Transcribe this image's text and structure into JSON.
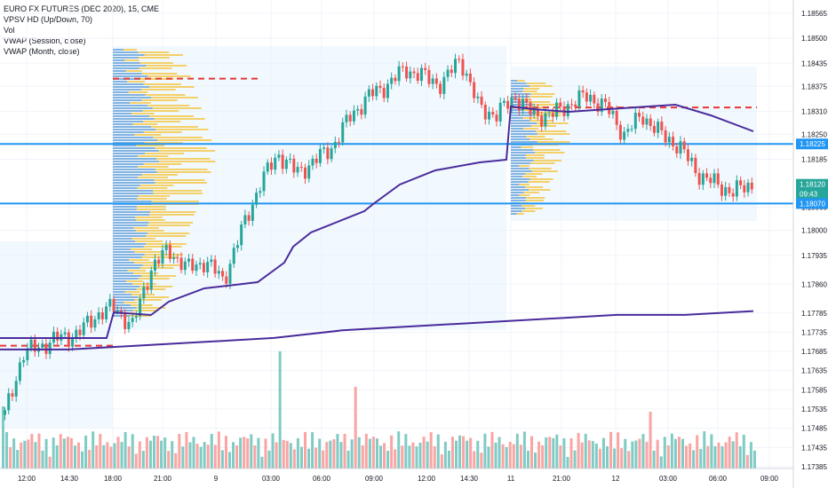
{
  "legend": {
    "title": "EURO FX FUTURES (DEC 2020), 15, CME",
    "line2": "VPSV HD (Up/Down, 70)",
    "line3": "Vol",
    "line4": "VWAP (Session, close)",
    "line5": "VWAP (Month, close)"
  },
  "chart_data": {
    "type": "candlestick",
    "title": "EURO FX FUTURES (DEC 2020), 15, CME",
    "price_axis_ticks": [
      "1.18565",
      "1.18500",
      "1.18435",
      "1.18375",
      "1.18310",
      "1.18250",
      "1.18185",
      "1.18060",
      "1.18000",
      "1.17935",
      "1.17860",
      "1.17785",
      "1.17735",
      "1.17685",
      "1.17635",
      "1.17585",
      "1.17535",
      "1.17485",
      "1.17435",
      "1.17385"
    ],
    "time_axis_ticks": [
      "12:00",
      "14:30",
      "18:00",
      "21:00",
      "9",
      "03:00",
      "06:00",
      "09:00",
      "12:00",
      "14:30",
      "11",
      "21:00",
      "12",
      "03:00",
      "06:00",
      "09:00"
    ],
    "price_badges": [
      {
        "label": "1.18225",
        "value": 1.18225,
        "color": "#2196f3"
      },
      {
        "label": "1.18120",
        "value": 1.1812,
        "color": "#26a69a"
      },
      {
        "label": "09:43",
        "value": 1.18095,
        "color": "#26a69a"
      },
      {
        "label": "1.18070",
        "value": 1.1807,
        "color": "#2196f3"
      }
    ],
    "horizontal_lines": [
      {
        "value": 1.18225,
        "color": "#2196f3",
        "style": "solid"
      },
      {
        "value": 1.1807,
        "color": "#2196f3",
        "style": "solid"
      }
    ],
    "poc_lines": [
      {
        "value": 1.18395,
        "from_time": "18:00",
        "color": "#e53935",
        "style": "dashed"
      },
      {
        "value": 1.1832,
        "from_time": "11",
        "color": "#e53935",
        "style": "dashed"
      },
      {
        "value": 1.177,
        "from_time": "12:00",
        "color": "#e53935",
        "style": "dashed"
      }
    ],
    "vwap_session_start": 1.1772,
    "vwap_month": [
      1.1769,
      1.1769,
      1.177,
      1.1771,
      1.1772,
      1.1774,
      1.1775,
      1.1776,
      1.1777,
      1.1778,
      1.1778,
      1.1779
    ],
    "close_path": [
      1.1752,
      1.1768,
      1.177,
      1.1772,
      1.1773,
      1.1778,
      1.178,
      1.1775,
      1.179,
      1.1795,
      1.179,
      1.1792,
      1.1787,
      1.18,
      1.1812,
      1.182,
      1.1815,
      1.1818,
      1.1822,
      1.183,
      1.1835,
      1.1838,
      1.1842,
      1.184,
      1.1838,
      1.1845,
      1.1832,
      1.183,
      1.1835,
      1.183,
      1.183,
      1.1833,
      1.1835,
      1.1832,
      1.1825,
      1.183,
      1.1825,
      1.1822,
      1.1815,
      1.1812,
      1.181,
      1.1812
    ],
    "volume_profile_sessions": 3,
    "grid": true,
    "up_color": "#26a69a",
    "down_color": "#ef5350",
    "vwap_color": "#4a2b9b"
  }
}
